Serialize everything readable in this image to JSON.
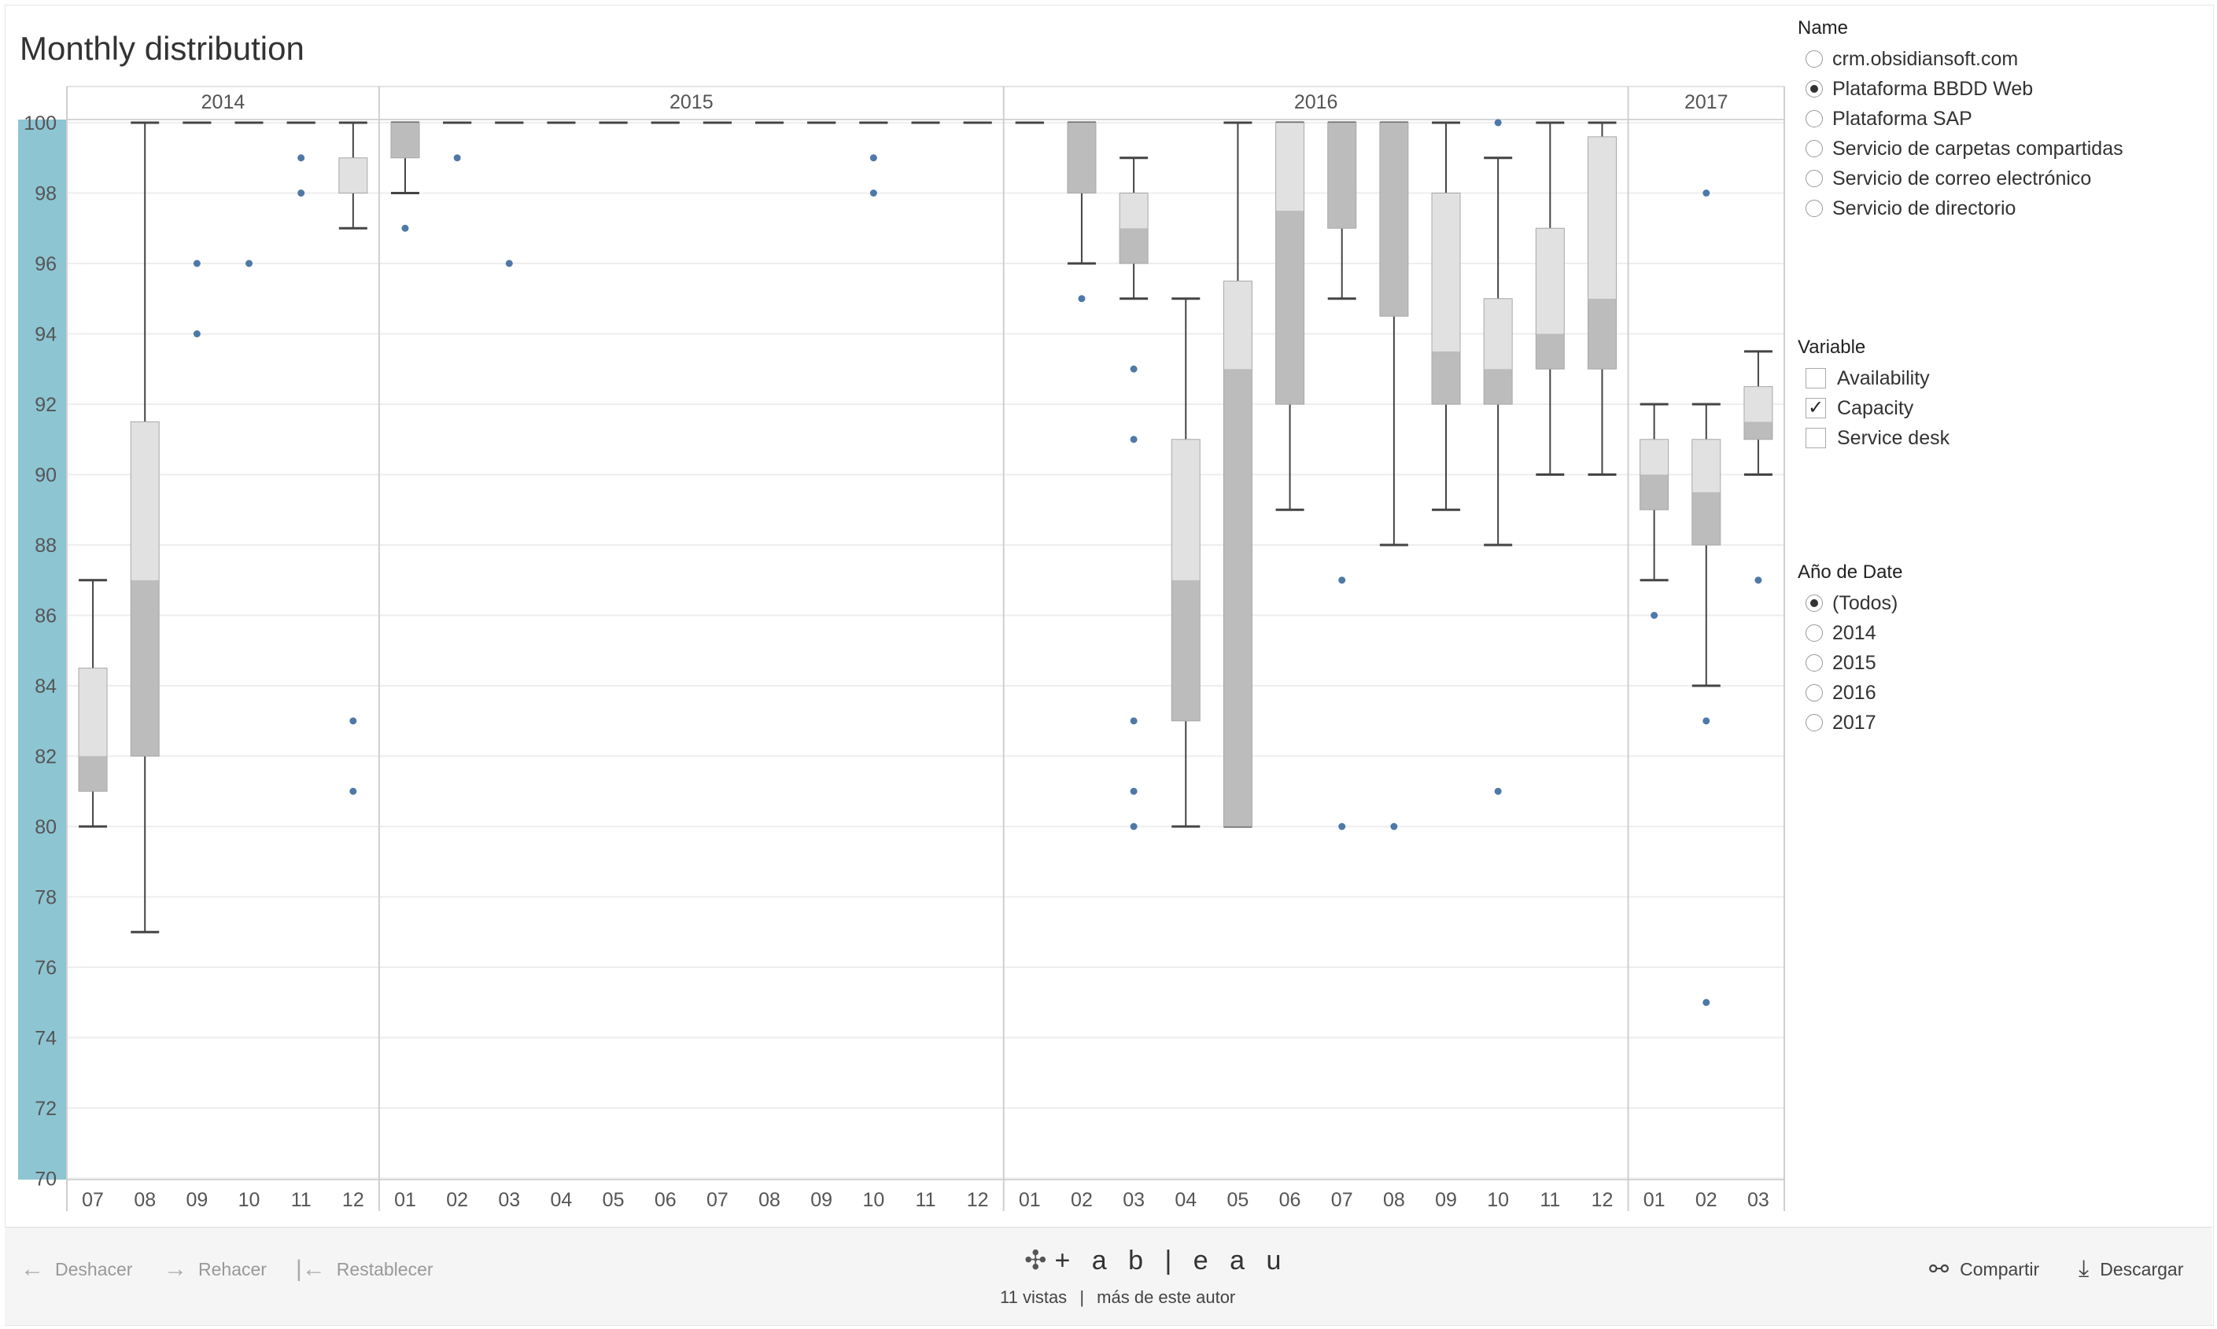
{
  "title": "Monthly distribution",
  "chart_data": {
    "type": "box",
    "ylim": [
      70,
      100
    ],
    "y_ticks": [
      70,
      72,
      74,
      76,
      78,
      80,
      82,
      84,
      86,
      88,
      90,
      92,
      94,
      96,
      98,
      100
    ],
    "year_groups": [
      {
        "year": "2014",
        "months": [
          "07",
          "08",
          "09",
          "10",
          "11",
          "12"
        ]
      },
      {
        "year": "2015",
        "months": [
          "01",
          "02",
          "03",
          "04",
          "05",
          "06",
          "07",
          "08",
          "09",
          "10",
          "11",
          "12"
        ]
      },
      {
        "year": "2016",
        "months": [
          "01",
          "02",
          "03",
          "04",
          "05",
          "06",
          "07",
          "08",
          "09",
          "10",
          "11",
          "12"
        ]
      },
      {
        "year": "2017",
        "months": [
          "01",
          "02",
          "03"
        ]
      }
    ],
    "boxes": [
      {
        "year": "2014",
        "month": "07",
        "wlo": 80,
        "q1": 81,
        "med": 82,
        "q3": 84.5,
        "whi": 87,
        "out": []
      },
      {
        "year": "2014",
        "month": "08",
        "wlo": 77,
        "q1": 82,
        "med": 87,
        "q3": 91.5,
        "whi": 100,
        "out": []
      },
      {
        "year": "2014",
        "month": "09",
        "wlo": 100,
        "q1": 100,
        "med": 100,
        "q3": 100,
        "whi": 100,
        "out": [
          96,
          94
        ]
      },
      {
        "year": "2014",
        "month": "10",
        "wlo": 100,
        "q1": 100,
        "med": 100,
        "q3": 100,
        "whi": 100,
        "out": [
          96
        ]
      },
      {
        "year": "2014",
        "month": "11",
        "wlo": 100,
        "q1": 100,
        "med": 100,
        "q3": 100,
        "whi": 100,
        "out": [
          99,
          98
        ]
      },
      {
        "year": "2014",
        "month": "12",
        "wlo": 97,
        "q1": 98,
        "med": 98,
        "q3": 99,
        "whi": 100,
        "out": [
          83,
          81
        ]
      },
      {
        "year": "2015",
        "month": "01",
        "wlo": 98,
        "q1": 99,
        "med": 100,
        "q3": 100,
        "whi": 100,
        "out": [
          97
        ]
      },
      {
        "year": "2015",
        "month": "02",
        "wlo": 100,
        "q1": 100,
        "med": 100,
        "q3": 100,
        "whi": 100,
        "out": [
          99
        ]
      },
      {
        "year": "2015",
        "month": "03",
        "wlo": 100,
        "q1": 100,
        "med": 100,
        "q3": 100,
        "whi": 100,
        "out": [
          96
        ]
      },
      {
        "year": "2015",
        "month": "04",
        "wlo": 100,
        "q1": 100,
        "med": 100,
        "q3": 100,
        "whi": 100,
        "out": []
      },
      {
        "year": "2015",
        "month": "05",
        "wlo": 100,
        "q1": 100,
        "med": 100,
        "q3": 100,
        "whi": 100,
        "out": []
      },
      {
        "year": "2015",
        "month": "06",
        "wlo": 100,
        "q1": 100,
        "med": 100,
        "q3": 100,
        "whi": 100,
        "out": []
      },
      {
        "year": "2015",
        "month": "07",
        "wlo": 100,
        "q1": 100,
        "med": 100,
        "q3": 100,
        "whi": 100,
        "out": []
      },
      {
        "year": "2015",
        "month": "08",
        "wlo": 100,
        "q1": 100,
        "med": 100,
        "q3": 100,
        "whi": 100,
        "out": []
      },
      {
        "year": "2015",
        "month": "09",
        "wlo": 100,
        "q1": 100,
        "med": 100,
        "q3": 100,
        "whi": 100,
        "out": []
      },
      {
        "year": "2015",
        "month": "10",
        "wlo": 100,
        "q1": 100,
        "med": 100,
        "q3": 100,
        "whi": 100,
        "out": [
          99,
          98
        ]
      },
      {
        "year": "2015",
        "month": "11",
        "wlo": 100,
        "q1": 100,
        "med": 100,
        "q3": 100,
        "whi": 100,
        "out": []
      },
      {
        "year": "2015",
        "month": "12",
        "wlo": 100,
        "q1": 100,
        "med": 100,
        "q3": 100,
        "whi": 100,
        "out": []
      },
      {
        "year": "2016",
        "month": "01",
        "wlo": 100,
        "q1": 100,
        "med": 100,
        "q3": 100,
        "whi": 100,
        "out": []
      },
      {
        "year": "2016",
        "month": "02",
        "wlo": 96,
        "q1": 98,
        "med": 100,
        "q3": 100,
        "whi": 100,
        "out": [
          95
        ]
      },
      {
        "year": "2016",
        "month": "03",
        "wlo": 95,
        "q1": 96,
        "med": 97,
        "q3": 98,
        "whi": 99,
        "out": [
          93,
          91,
          83,
          81,
          80
        ]
      },
      {
        "year": "2016",
        "month": "04",
        "wlo": 80,
        "q1": 83,
        "med": 87,
        "q3": 91,
        "whi": 95,
        "out": []
      },
      {
        "year": "2016",
        "month": "05",
        "wlo": 80,
        "q1": 80,
        "med": 93,
        "q3": 95.5,
        "whi": 100,
        "out": []
      },
      {
        "year": "2016",
        "month": "06",
        "wlo": 89,
        "q1": 92,
        "med": 97.5,
        "q3": 100,
        "whi": 100,
        "out": []
      },
      {
        "year": "2016",
        "month": "07",
        "wlo": 95,
        "q1": 97,
        "med": 100,
        "q3": 100,
        "whi": 100,
        "out": [
          87,
          80
        ]
      },
      {
        "year": "2016",
        "month": "08",
        "wlo": 88,
        "q1": 94.5,
        "med": 100,
        "q3": 100,
        "whi": 100,
        "out": [
          80
        ]
      },
      {
        "year": "2016",
        "month": "09",
        "wlo": 89,
        "q1": 92,
        "med": 93.5,
        "q3": 98,
        "whi": 100,
        "out": []
      },
      {
        "year": "2016",
        "month": "10",
        "wlo": 88,
        "q1": 92,
        "med": 93,
        "q3": 95,
        "whi": 99,
        "out": [
          100,
          81
        ]
      },
      {
        "year": "2016",
        "month": "11",
        "wlo": 90,
        "q1": 93,
        "med": 94,
        "q3": 97,
        "whi": 100,
        "out": []
      },
      {
        "year": "2016",
        "month": "12",
        "wlo": 90,
        "q1": 93,
        "med": 95,
        "q3": 99.6,
        "whi": 100,
        "out": []
      },
      {
        "year": "2017",
        "month": "01",
        "wlo": 87,
        "q1": 89,
        "med": 90,
        "q3": 91,
        "whi": 92,
        "out": [
          86
        ]
      },
      {
        "year": "2017",
        "month": "02",
        "wlo": 84,
        "q1": 88,
        "med": 89.5,
        "q3": 91,
        "whi": 92,
        "out": [
          98,
          83,
          75
        ]
      },
      {
        "year": "2017",
        "month": "03",
        "wlo": 90,
        "q1": 91,
        "med": 91.5,
        "q3": 92.5,
        "whi": 93.5,
        "out": [
          87
        ]
      }
    ],
    "colors": {
      "lower_box": "#bcbcbc",
      "upper_box": "#e1e1e1",
      "whisker": "#444444",
      "outlier": "#4e79a7",
      "axis_band": "#8ec5d3",
      "grid": "#eeeeee"
    }
  },
  "filters": {
    "name": {
      "title": "Name",
      "options": [
        {
          "label": "crm.obsidiansoft.com",
          "selected": false
        },
        {
          "label": "Plataforma BBDD Web",
          "selected": true
        },
        {
          "label": "Plataforma SAP",
          "selected": false
        },
        {
          "label": "Servicio de carpetas compartidas",
          "selected": false
        },
        {
          "label": "Servicio de correo electrónico",
          "selected": false
        },
        {
          "label": "Servicio de directorio",
          "selected": false
        }
      ]
    },
    "variable": {
      "title": "Variable",
      "options": [
        {
          "label": "Availability",
          "checked": false
        },
        {
          "label": "Capacity",
          "checked": true
        },
        {
          "label": "Service desk",
          "checked": false
        }
      ]
    },
    "year": {
      "title": "Año de Date",
      "options": [
        {
          "label": "(Todos)",
          "selected": true
        },
        {
          "label": "2014",
          "selected": false
        },
        {
          "label": "2015",
          "selected": false
        },
        {
          "label": "2016",
          "selected": false
        },
        {
          "label": "2017",
          "selected": false
        }
      ]
    }
  },
  "footer": {
    "undo": "Deshacer",
    "redo": "Rehacer",
    "reset": "Restablecer",
    "brand": "+ a b | e a u",
    "views": "11 vistas",
    "separator": "|",
    "author": "más de este autor",
    "share": "Compartir",
    "download": "Descargar"
  }
}
